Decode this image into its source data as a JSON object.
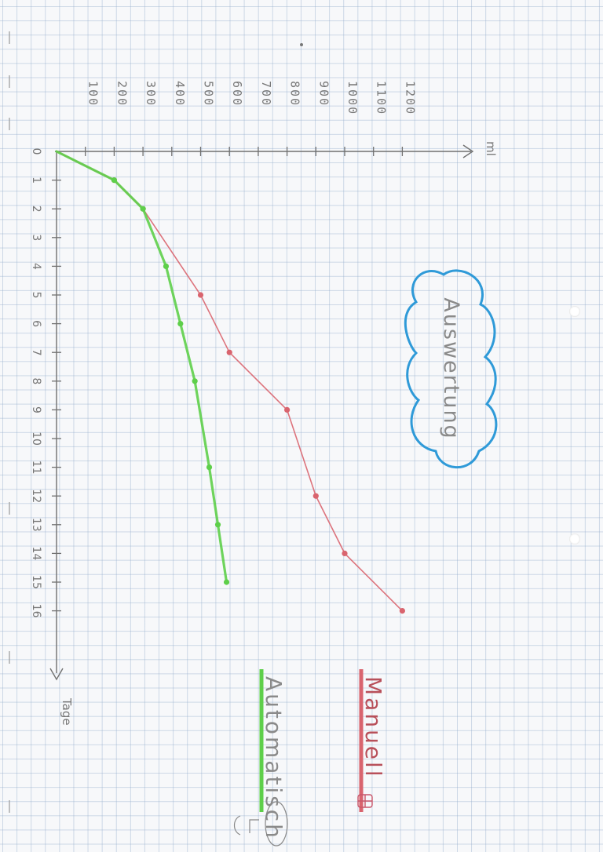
{
  "chart_data": {
    "type": "line",
    "title": "Auswertung",
    "xlabel": "Tage",
    "ylabel": "ml",
    "x_ticks": [
      "0",
      "1",
      "2",
      "3",
      "4",
      "5",
      "6",
      "7",
      "8",
      "9",
      "10",
      "11",
      "12",
      "13",
      "14",
      "15",
      "16"
    ],
    "y_ticks": [
      "100",
      "200",
      "300",
      "400",
      "500",
      "600",
      "700",
      "800",
      "900",
      "1000",
      "1100",
      "1200"
    ],
    "xlim": [
      0,
      16
    ],
    "ylim": [
      0,
      1200
    ],
    "series": [
      {
        "name": "Manuell",
        "color": "#d9646e",
        "x": [
          0,
          1,
          2,
          5,
          7,
          9,
          12,
          14,
          16
        ],
        "y": [
          0,
          200,
          300,
          500,
          600,
          800,
          900,
          1000,
          1200
        ]
      },
      {
        "name": "Automatisch",
        "color": "#5ecf4a",
        "x": [
          0,
          1,
          2,
          4,
          6,
          8,
          11,
          13,
          15
        ],
        "y": [
          0,
          200,
          300,
          380,
          430,
          480,
          530,
          560,
          590
        ]
      }
    ],
    "legend": [
      "Manuell",
      "Automatisch"
    ],
    "legend_placement": "bottom-right",
    "grid": true
  },
  "colors": {
    "cloud": "#2f9ad8",
    "axis": "#707070",
    "label": "#7a7a7a"
  }
}
